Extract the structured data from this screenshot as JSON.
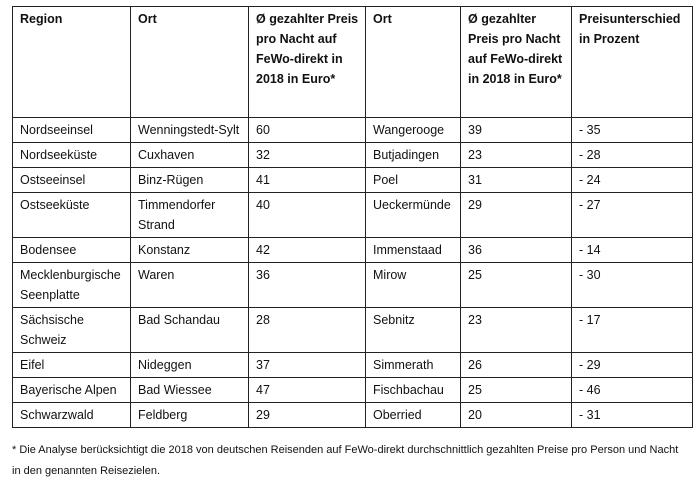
{
  "table": {
    "headers": {
      "region": "Region",
      "ort1": "Ort",
      "preis1": "Ø gezahlter Preis pro Nacht auf FeWo-direkt in 2018 in Euro*",
      "ort2": "Ort",
      "preis2": "Ø gezahlter Preis pro Nacht auf FeWo-direkt in 2018 in Euro*",
      "unterschied": "Preisunterschied in Prozent"
    },
    "rows": [
      {
        "region": "Nordseeinsel",
        "ort1": "Wenningstedt-Sylt",
        "preis1": "60",
        "ort2": "Wangerooge",
        "preis2": "39",
        "unterschied": "- 35"
      },
      {
        "region": "Nordseeküste",
        "ort1": "Cuxhaven",
        "preis1": "32",
        "ort2": "Butjadingen",
        "preis2": "23",
        "unterschied": "- 28"
      },
      {
        "region": "Ostseeinsel",
        "ort1": "Binz-Rügen",
        "preis1": "41",
        "ort2": "Poel",
        "preis2": "31",
        "unterschied": "- 24"
      },
      {
        "region": "Ostseeküste",
        "ort1": "Timmendorfer Strand",
        "preis1": "40",
        "ort2": "Ueckermünde",
        "preis2": "29",
        "unterschied": "- 27"
      },
      {
        "region": "Bodensee",
        "ort1": "Konstanz",
        "preis1": "42",
        "ort2": "Immenstaad",
        "preis2": "36",
        "unterschied": "- 14"
      },
      {
        "region": "Mecklenburgische Seenplatte",
        "ort1": "Waren",
        "preis1": "36",
        "ort2": "Mirow",
        "preis2": "25",
        "unterschied": "- 30"
      },
      {
        "region": "Sächsische Schweiz",
        "ort1": "Bad Schandau",
        "preis1": "28",
        "ort2": "Sebnitz",
        "preis2": "23",
        "unterschied": "- 17"
      },
      {
        "region": "Eifel",
        "ort1": "Nideggen",
        "preis1": "37",
        "ort2": "Simmerath",
        "preis2": "26",
        "unterschied": "- 29"
      },
      {
        "region": "Bayerische Alpen",
        "ort1": "Bad Wiessee",
        "preis1": "47",
        "ort2": "Fischbachau",
        "preis2": "25",
        "unterschied": "- 46"
      },
      {
        "region": "Schwarzwald",
        "ort1": "Feldberg",
        "preis1": "29",
        "ort2": "Oberried",
        "preis2": "20",
        "unterschied": "- 31"
      }
    ]
  },
  "footnote": "* Die Analyse berücksichtigt die 2018 von deutschen Reisenden auf FeWo-direkt durchschnittlich gezahlten Preise pro Person und Nacht in den genannten Reisezielen."
}
